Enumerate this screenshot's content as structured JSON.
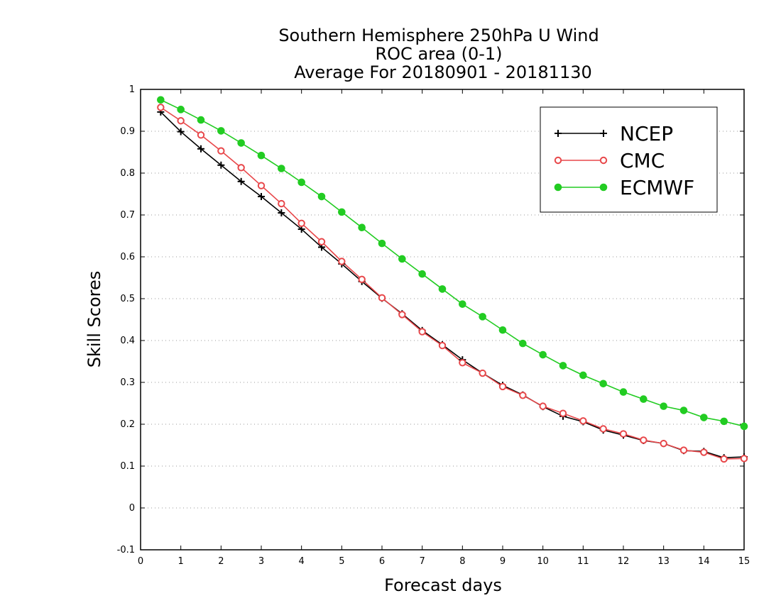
{
  "chart_data": {
    "type": "line",
    "title": [
      "Southern Hemisphere 250hPa U Wind",
      "ROC area (0-1)",
      "Average For 20180901 - 20181130"
    ],
    "xlabel": "Forecast days",
    "ylabel": "Skill Scores",
    "xlim": [
      0,
      15
    ],
    "ylim": [
      -0.1,
      1
    ],
    "xticks": [
      0,
      1,
      2,
      3,
      4,
      5,
      6,
      7,
      8,
      9,
      10,
      11,
      12,
      13,
      14,
      15
    ],
    "yticks": [
      -0.1,
      0,
      0.1,
      0.2,
      0.3,
      0.4,
      0.5,
      0.6,
      0.7,
      0.8,
      0.9,
      1
    ],
    "ytick_labels": [
      "-0.1",
      "0",
      "0.1",
      "0.2",
      "0.3",
      "0.4",
      "0.5",
      "0.6",
      "0.7",
      "0.8",
      "0.9",
      "1"
    ],
    "grid": "horizontal dotted",
    "legend_position": "top-right",
    "x": [
      0.5,
      1,
      1.5,
      2,
      2.5,
      3,
      3.5,
      4,
      4.5,
      5,
      5.5,
      6,
      6.5,
      7,
      7.5,
      8,
      8.5,
      9,
      9.5,
      10,
      10.5,
      11,
      11.5,
      12,
      12.5,
      13,
      13.5,
      14,
      14.5,
      15
    ],
    "series": [
      {
        "name": "NCEP",
        "color": "#000000",
        "marker": "plus",
        "values": [
          0.946,
          0.899,
          0.858,
          0.819,
          0.78,
          0.744,
          0.705,
          0.666,
          0.623,
          0.583,
          0.541,
          0.501,
          0.464,
          0.424,
          0.39,
          0.354,
          0.322,
          0.293,
          0.27,
          0.242,
          0.219,
          0.206,
          0.186,
          0.174,
          0.161,
          0.154,
          0.137,
          0.135,
          0.12,
          0.122
        ]
      },
      {
        "name": "CMC",
        "color": "#e8474a",
        "marker": "open-circle",
        "values": [
          0.957,
          0.925,
          0.891,
          0.853,
          0.813,
          0.77,
          0.727,
          0.68,
          0.636,
          0.589,
          0.546,
          0.502,
          0.462,
          0.421,
          0.388,
          0.347,
          0.322,
          0.29,
          0.269,
          0.243,
          0.226,
          0.208,
          0.189,
          0.177,
          0.162,
          0.154,
          0.138,
          0.133,
          0.117,
          0.118
        ]
      },
      {
        "name": "ECMWF",
        "color": "#22cc22",
        "marker": "filled-circle",
        "values": [
          0.975,
          0.952,
          0.927,
          0.901,
          0.872,
          0.842,
          0.811,
          0.778,
          0.744,
          0.707,
          0.67,
          0.632,
          0.595,
          0.559,
          0.523,
          0.487,
          0.457,
          0.425,
          0.393,
          0.366,
          0.34,
          0.317,
          0.297,
          0.277,
          0.26,
          0.243,
          0.233,
          0.216,
          0.207,
          0.195
        ]
      }
    ]
  }
}
